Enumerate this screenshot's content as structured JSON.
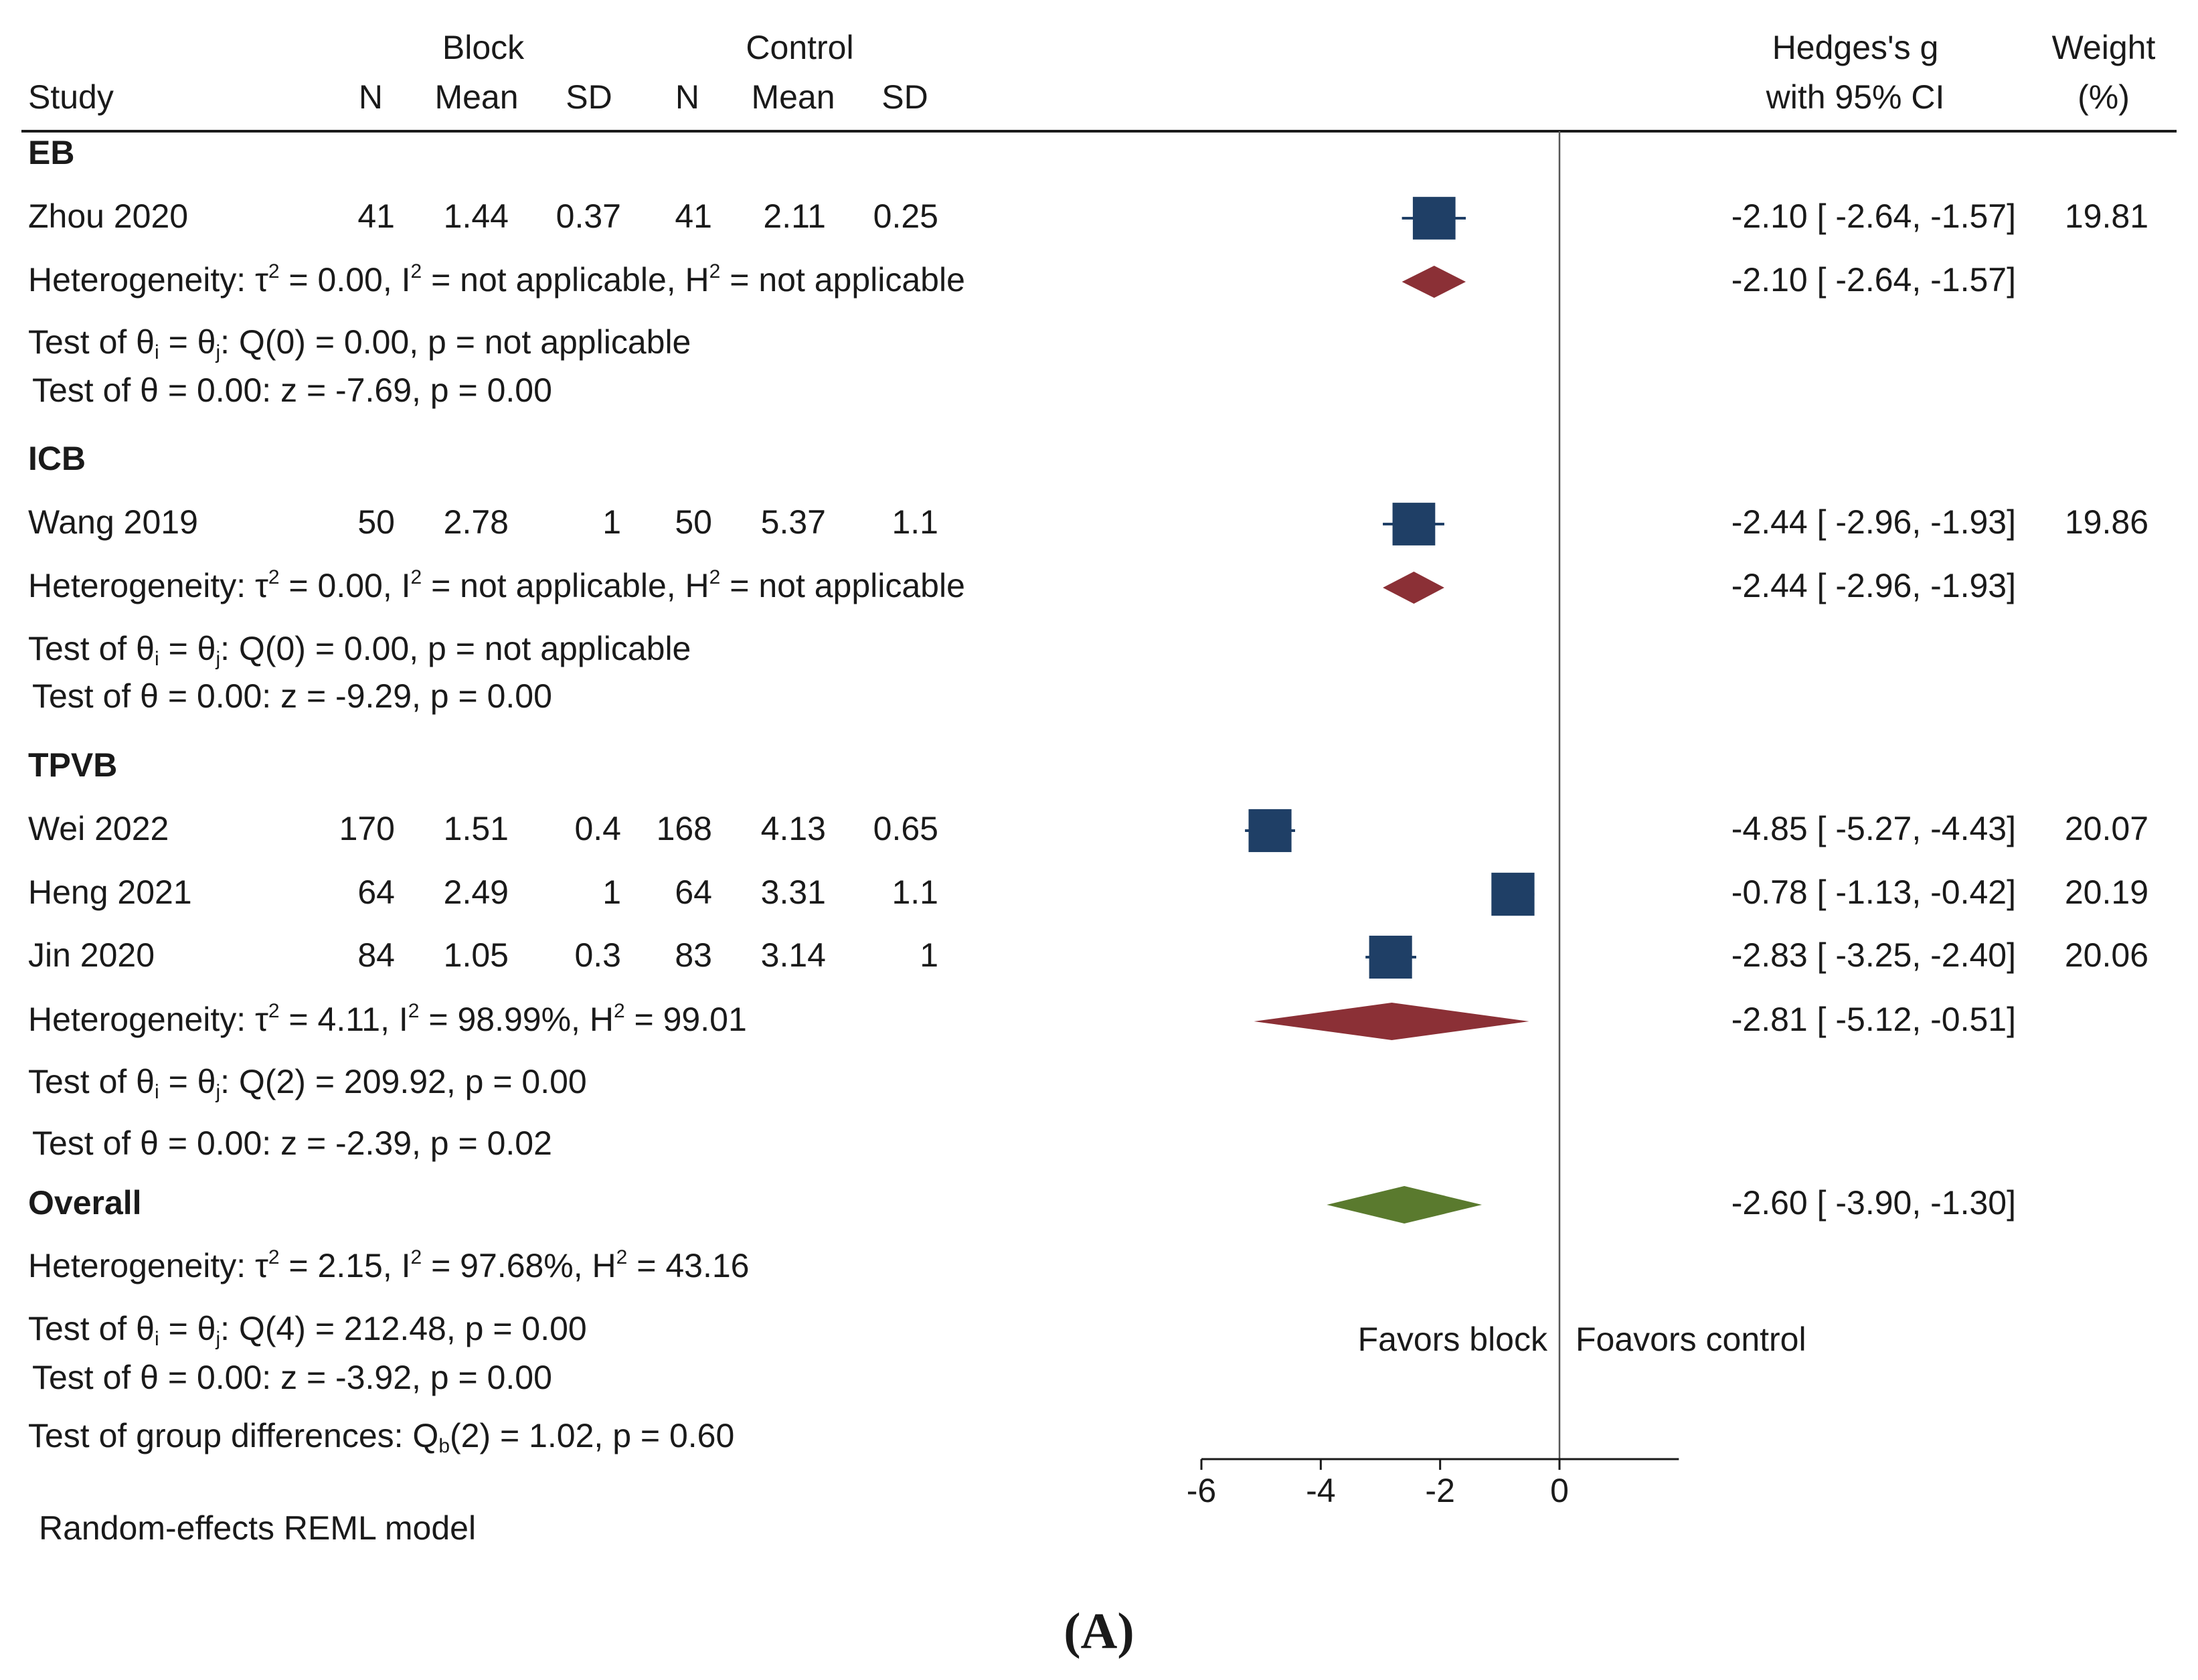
{
  "chart_data": {
    "type": "forest",
    "columns": {
      "group1_header": "Block",
      "group2_header": "Control",
      "study": "Study",
      "n1": "N",
      "mean1": "Mean",
      "sd1": "SD",
      "n2": "N",
      "mean2": "Mean",
      "sd2": "SD",
      "effect_line1": "Hedges's g",
      "effect_line2": "with 95% CI",
      "weight_line1": "Weight",
      "weight_line2": "(%)"
    },
    "rows": [
      {
        "kind": "group",
        "label": "EB"
      },
      {
        "kind": "study",
        "label": "Zhou 2020",
        "n1": "41",
        "mean1": "1.44",
        "sd1": "0.37",
        "n2": "41",
        "mean2": "2.11",
        "sd2": "0.25",
        "g": -2.1,
        "lo": -2.64,
        "hi": -1.57,
        "ci_text": "-2.10 [ -2.64,  -1.57]",
        "weight": "19.81"
      },
      {
        "kind": "het",
        "tau": "0.00",
        "i2": "not applicable",
        "h2": "not applicable",
        "g": -2.1,
        "lo": -2.64,
        "hi": -1.57,
        "ci_text": "-2.10 [ -2.64,  -1.57]",
        "color": "#8b3036"
      },
      {
        "kind": "qtest",
        "q": "Q(0) = 0.00, p = not applicable"
      },
      {
        "kind": "ztest",
        "text": "Test of θ = 0.00: z = -7.69, p = 0.00"
      },
      {
        "kind": "group",
        "label": "ICB"
      },
      {
        "kind": "study",
        "label": "Wang 2019",
        "n1": "50",
        "mean1": "2.78",
        "sd1": "1",
        "n2": "50",
        "mean2": "5.37",
        "sd2": "1.1",
        "g": -2.44,
        "lo": -2.96,
        "hi": -1.93,
        "ci_text": "-2.44 [ -2.96,  -1.93]",
        "weight": "19.86"
      },
      {
        "kind": "het",
        "tau": "0.00",
        "i2": "not applicable",
        "h2": "not applicable",
        "g": -2.44,
        "lo": -2.96,
        "hi": -1.93,
        "ci_text": "-2.44 [ -2.96,  -1.93]",
        "color": "#8b3036"
      },
      {
        "kind": "qtest",
        "q": "Q(0) = 0.00, p = not applicable"
      },
      {
        "kind": "ztest",
        "text": "Test of θ = 0.00: z = -9.29, p = 0.00"
      },
      {
        "kind": "group",
        "label": "TPVB"
      },
      {
        "kind": "study",
        "label": "Wei 2022",
        "n1": "170",
        "mean1": "1.51",
        "sd1": "0.4",
        "n2": "168",
        "mean2": "4.13",
        "sd2": "0.65",
        "g": -4.85,
        "lo": -5.27,
        "hi": -4.43,
        "ci_text": "-4.85 [ -5.27,  -4.43]",
        "weight": "20.07"
      },
      {
        "kind": "study",
        "label": "Heng 2021",
        "n1": "64",
        "mean1": "2.49",
        "sd1": "1",
        "n2": "64",
        "mean2": "3.31",
        "sd2": "1.1",
        "g": -0.78,
        "lo": -1.13,
        "hi": -0.42,
        "ci_text": "-0.78 [ -1.13,  -0.42]",
        "weight": "20.19"
      },
      {
        "kind": "study",
        "label": "Jin 2020",
        "n1": "84",
        "mean1": "1.05",
        "sd1": "0.3",
        "n2": "83",
        "mean2": "3.14",
        "sd2": "1",
        "g": -2.83,
        "lo": -3.25,
        "hi": -2.4,
        "ci_text": "-2.83 [ -3.25,  -2.40]",
        "weight": "20.06"
      },
      {
        "kind": "het",
        "tau": "4.11",
        "i2": "98.99%",
        "h2": "99.01",
        "g": -2.81,
        "lo": -5.12,
        "hi": -0.51,
        "ci_text": "-2.81 [ -5.12,  -0.51]",
        "color": "#8b3036"
      },
      {
        "kind": "qtest",
        "q": "Q(2) = 209.92, p = 0.00"
      },
      {
        "kind": "ztest",
        "text": "Test of θ = 0.00: z = -2.39, p = 0.02"
      },
      {
        "kind": "overall",
        "label": "Overall",
        "g": -2.6,
        "lo": -3.9,
        "hi": -1.3,
        "ci_text": "-2.60 [ -3.90,  -1.30]",
        "color": "#5a7a2e"
      },
      {
        "kind": "het",
        "tau": "2.15",
        "i2": "97.68%",
        "h2": "43.16"
      },
      {
        "kind": "qtest",
        "q": "Q(4) = 212.48, p = 0.00"
      },
      {
        "kind": "ztest",
        "text": "Test of θ = 0.00: z = -3.92, p = 0.00"
      },
      {
        "kind": "groupdiff",
        "text": "Test of group differences: Q(2) = 1.02, p = 0.60"
      }
    ],
    "favors_left": "Favors block",
    "favors_right": "Foavors control",
    "model_note": "Random-effects REML model",
    "xaxis": {
      "ticks": [
        -6,
        -4,
        -2,
        0
      ],
      "range": [
        -6,
        2
      ],
      "null_line": 0
    },
    "caption": "(A)",
    "colors": {
      "study_box": "#1f3f66",
      "subgroup_diamond": "#8b3036",
      "overall_diamond": "#5a7a2e",
      "text": "#1a1a1a"
    }
  }
}
